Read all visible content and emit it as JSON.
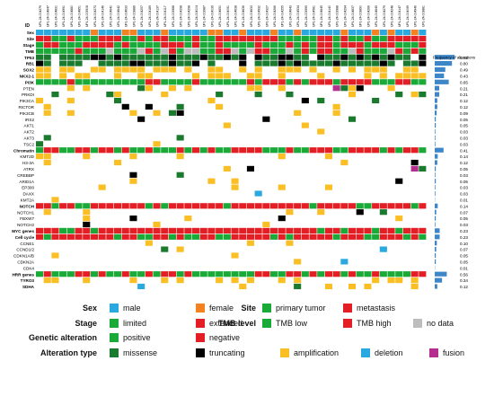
{
  "id_label": "ID",
  "samples": [
    "UPL-24-004279",
    "UPL-24-004647",
    "UPL-24-004831",
    "UPL-24-004991",
    "UPL-24-004880",
    "UPL-24-004851",
    "UPL-24-003908",
    "UPL-24-004273",
    "UPL-24-004146",
    "UPL-24-004640",
    "UPL-24-004642",
    "UPL-24-004633",
    "UPL-24-003886",
    "UPL-24-004257",
    "UPL-24-004189",
    "UPL-24-004137",
    "UPL-24-004117",
    "UPL-24-003988",
    "UPL-24-004298",
    "UPL-24-004298",
    "UPL-24-004004",
    "UPL-24-003987",
    "UPL-24-004039",
    "UPL-24-004650",
    "UPL-24-004091",
    "UPL-24-004638",
    "UPL-24-004636",
    "UPL-24-004633",
    "UPL-24-004932",
    "UPL-24-004327",
    "UPL-24-004266",
    "UPL-24-004255",
    "UPL-24-004643",
    "UPL-24-004534",
    "UPL-24-003995",
    "UPL-24-004581",
    "UPL-24-004645",
    "UPL-24-004140",
    "UPL-24-003988",
    "UPL-24-004294",
    "UPL-24-004837",
    "UPL-24-003890",
    "UPL-24-004266",
    "UPL-24-004645",
    "UPL-24-004279",
    "UPL-24-004248",
    "UPL-24-004147",
    "UPL-24-004099",
    "UPL-24-004946",
    "UPL-24-003881"
  ],
  "freq_title": "Frequency of alterations",
  "annotation_rows": [
    {
      "label": "Sex",
      "bold": true
    },
    {
      "label": "Site",
      "bold": true
    },
    {
      "label": "Stage",
      "bold": true
    },
    {
      "label": "TMB",
      "bold": true
    }
  ],
  "gene_rows": [
    {
      "label": "TP53",
      "bold": true,
      "freq": "0.92",
      "value": 0.92
    },
    {
      "label": "RB1",
      "bold": true,
      "freq": "0.80",
      "value": 0.8
    },
    {
      "label": "SOX2",
      "bold": true,
      "freq": "0.49",
      "value": 0.49
    },
    {
      "label": "NKX2-1",
      "bold": true,
      "freq": "0.43",
      "value": 0.43
    },
    {
      "label": "PI3K",
      "bold": true,
      "freq": "0.65",
      "value": 0.65,
      "group": true
    },
    {
      "label": "PTEN",
      "bold": false,
      "freq": "0.21",
      "value": 0.21
    },
    {
      "label": "PRKDI",
      "bold": false,
      "freq": "0.21",
      "value": 0.21
    },
    {
      "label": "PIK3CA",
      "bold": false,
      "freq": "0.12",
      "value": 0.12
    },
    {
      "label": "RICTOR",
      "bold": false,
      "freq": "0.12",
      "value": 0.12
    },
    {
      "label": "PIK3CB",
      "bold": false,
      "freq": "0.09",
      "value": 0.09
    },
    {
      "label": "IRS2",
      "bold": false,
      "freq": "0.05",
      "value": 0.05
    },
    {
      "label": "AKT1",
      "bold": false,
      "freq": "0.05",
      "value": 0.05
    },
    {
      "label": "AKT2",
      "bold": false,
      "freq": "0.03",
      "value": 0.03
    },
    {
      "label": "AKT3",
      "bold": false,
      "freq": "0.03",
      "value": 0.03
    },
    {
      "label": "TSC2",
      "bold": false,
      "freq": "0.03",
      "value": 0.03
    },
    {
      "label": "Chromatin",
      "bold": true,
      "freq": "0.41",
      "value": 0.41,
      "group": true
    },
    {
      "label": "KMT2D",
      "bold": false,
      "freq": "0.14",
      "value": 0.14
    },
    {
      "label": "H3-3A",
      "bold": false,
      "freq": "0.12",
      "value": 0.12
    },
    {
      "label": "ATRX",
      "bold": false,
      "freq": "0.05",
      "value": 0.05
    },
    {
      "label": "CREBBP",
      "bold": false,
      "freq": "0.03",
      "value": 0.03
    },
    {
      "label": "ARID1A",
      "bold": false,
      "freq": "0.05",
      "value": 0.05
    },
    {
      "label": "EP300",
      "bold": false,
      "freq": "0.03",
      "value": 0.03
    },
    {
      "label": "DAXX",
      "bold": false,
      "freq": "0.03",
      "value": 0.03
    },
    {
      "label": "KMT2A",
      "bold": false,
      "freq": "0.01",
      "value": 0.01
    },
    {
      "label": "NOTCH",
      "bold": true,
      "freq": "0.14",
      "value": 0.14,
      "group": true
    },
    {
      "label": "NOTCH1",
      "bold": false,
      "freq": "0.07",
      "value": 0.07
    },
    {
      "label": "FBXW7",
      "bold": false,
      "freq": "0.05",
      "value": 0.05
    },
    {
      "label": "NOTCH2",
      "bold": false,
      "freq": "0.03",
      "value": 0.03
    },
    {
      "label": "MYC genes",
      "bold": true,
      "freq": "0.23",
      "value": 0.23
    },
    {
      "label": "Cell cycle",
      "bold": true,
      "freq": "0.23",
      "value": 0.23,
      "group": true
    },
    {
      "label": "CCNE1",
      "bold": false,
      "freq": "0.10",
      "value": 0.1
    },
    {
      "label": "CCND1/2",
      "bold": false,
      "freq": "0.07",
      "value": 0.07
    },
    {
      "label": "CDKN1A/B",
      "bold": false,
      "freq": "0.05",
      "value": 0.05
    },
    {
      "label": "CDKN2A",
      "bold": false,
      "freq": "0.05",
      "value": 0.05
    },
    {
      "label": "CDK4",
      "bold": false,
      "freq": "0.01",
      "value": 0.01
    },
    {
      "label": "HRR genes",
      "bold": true,
      "freq": "0.56",
      "value": 0.56
    },
    {
      "label": "TYRO3",
      "bold": true,
      "freq": "0.34",
      "value": 0.34
    },
    {
      "label": "SDHA",
      "bold": true,
      "freq": "0.12",
      "value": 0.12
    }
  ],
  "colors": {
    "male": "#29a9e0",
    "female": "#f58220",
    "primary_tumor": "#1aaa38",
    "metastasis": "#e31e24",
    "limited": "#1aaa38",
    "extended": "#e31e24",
    "tmb_low": "#1aaa38",
    "tmb_high": "#e31e24",
    "no_data": "#bdbdbd",
    "positive": "#1aaa38",
    "negative": "#e31e24",
    "missense": "#1a7a2e",
    "truncating": "#000000",
    "amplification": "#fbbf26",
    "deletion": "#29a9e0",
    "fusion": "#b52e8f",
    "freq_bar": "#3d87c9",
    "empty_cell": "#ffffff"
  },
  "legend": {
    "sex_label": "Sex",
    "male": "male",
    "female": "female",
    "site_label": "Site",
    "primary_tumor": "primary tumor",
    "metastasis": "metastasis",
    "stage_label": "Stage",
    "limited": "limited",
    "extended": "extended",
    "tmb_label": "TMB level",
    "tmb_low": "TMB low",
    "tmb_high": "TMB high",
    "no_data": "no data",
    "genetic_label": "Genetic alteration",
    "positive": "positive",
    "negative": "negative",
    "alteration_label": "Alteration type",
    "missense": "missense",
    "truncating": "truncating",
    "amplification": "amplification",
    "deletion": "deletion",
    "fusion": "fusion"
  }
}
